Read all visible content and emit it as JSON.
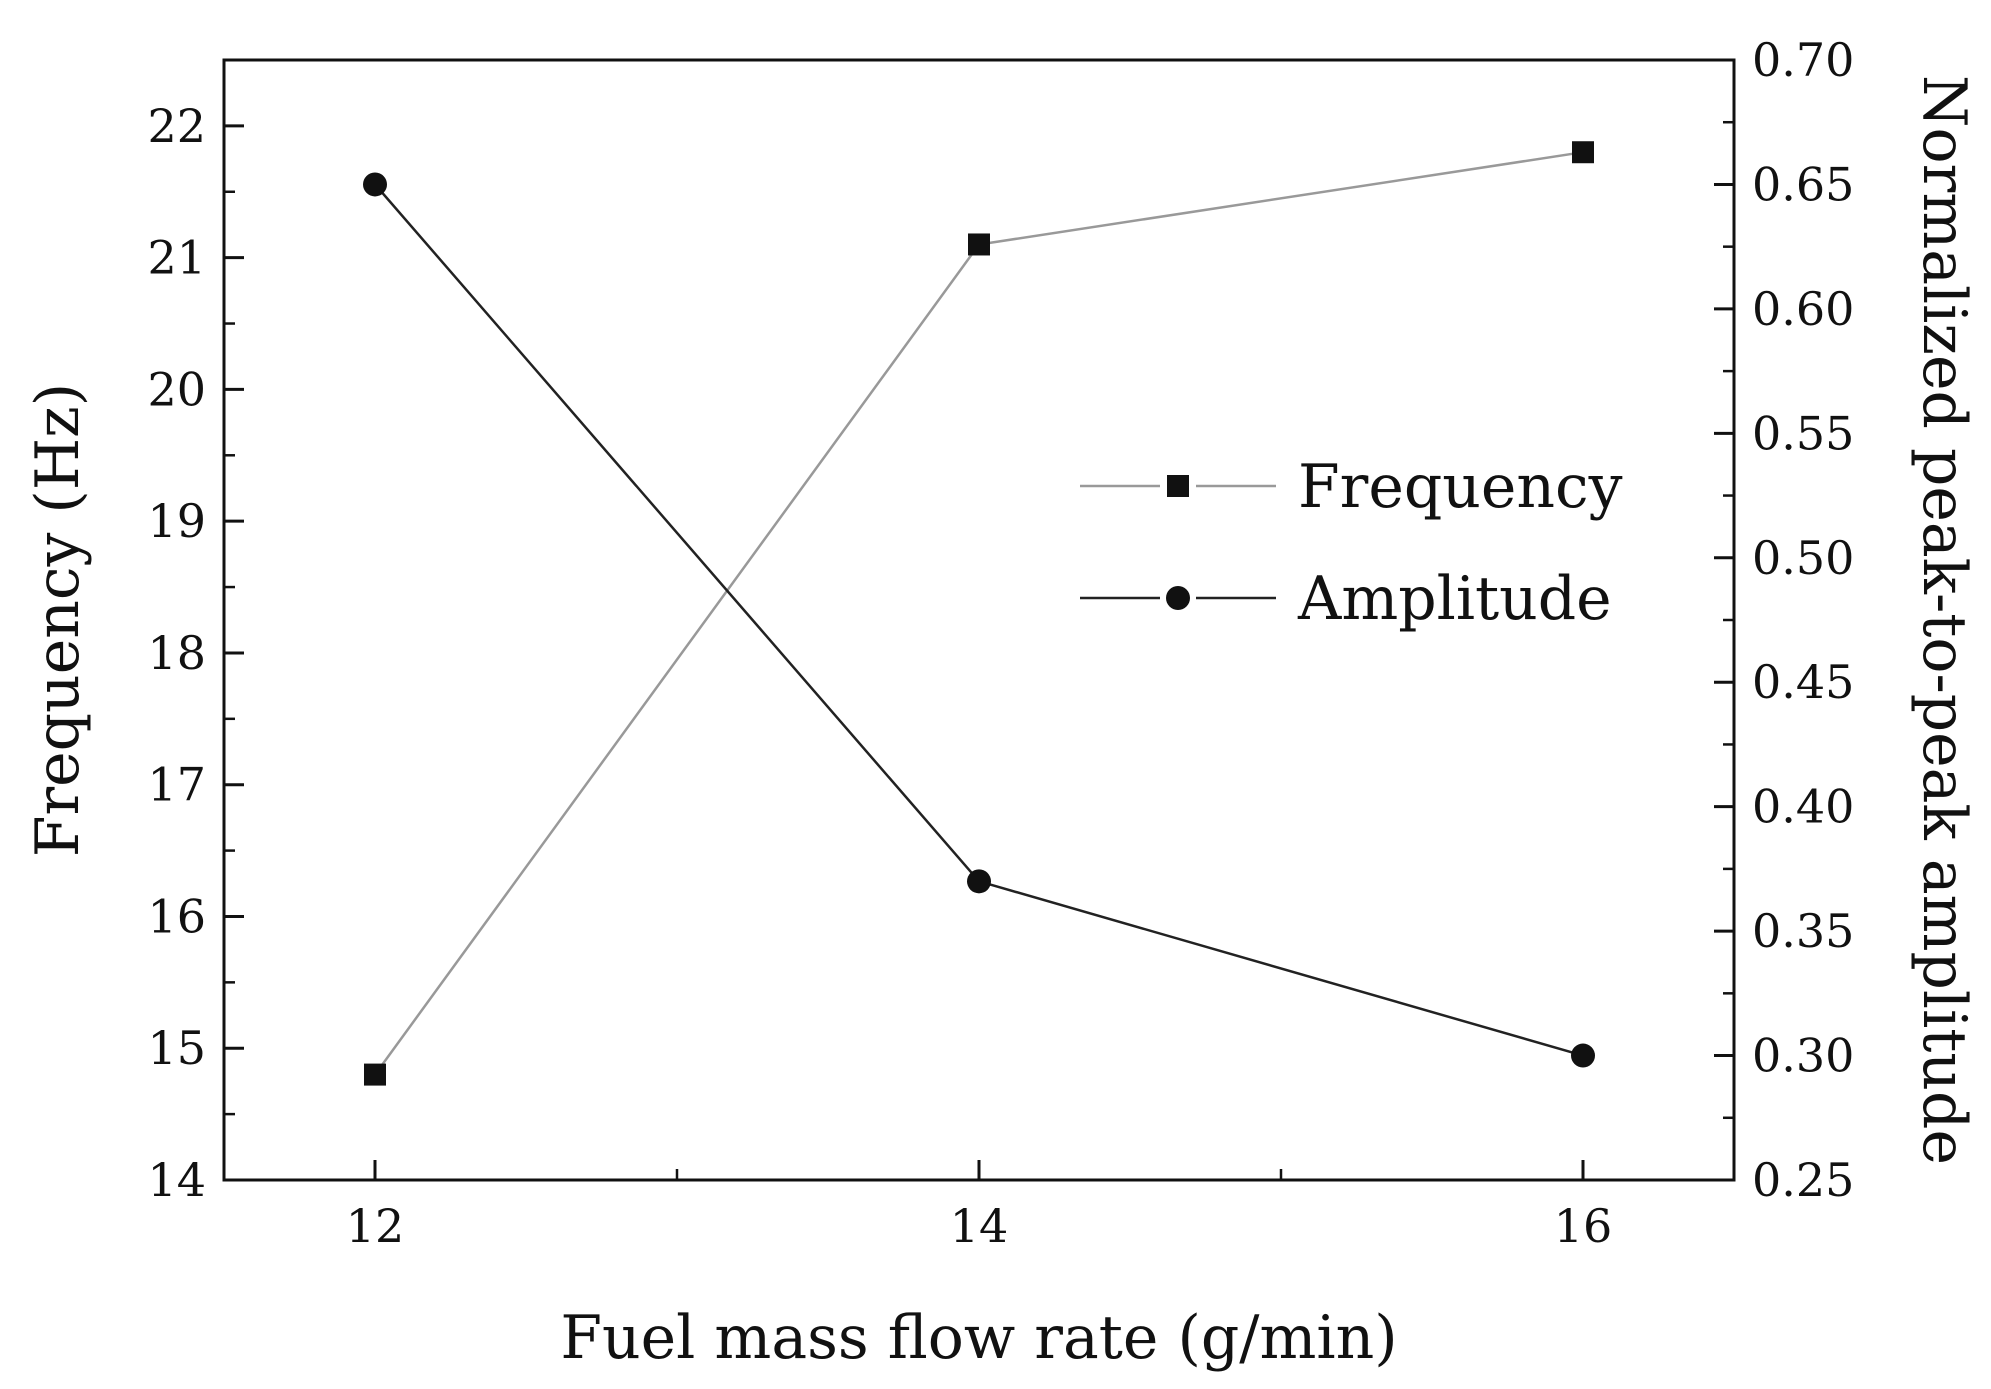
{
  "chart_data": {
    "type": "line",
    "title": "",
    "xlabel": "Fuel mass flow rate (g/min)",
    "ylabel_left": "Frequency (Hz)",
    "ylabel_right": "Normalized peak-to-peak amplitude",
    "x": [
      12,
      14,
      16
    ],
    "x_ticks": [
      "12",
      "14",
      "16"
    ],
    "xlim": [
      11.5,
      16.5
    ],
    "ylim_left": [
      14,
      22.5
    ],
    "ylim_right": [
      0.25,
      0.7
    ],
    "y_ticks_left": [
      "14",
      "15",
      "16",
      "17",
      "18",
      "19",
      "20",
      "21",
      "22"
    ],
    "y_ticks_right": [
      "0.25",
      "0.30",
      "0.35",
      "0.40",
      "0.45",
      "0.50",
      "0.55",
      "0.60",
      "0.65",
      "0.70"
    ],
    "grid": false,
    "legend_position": "center-right",
    "series": [
      {
        "name": "Frequency",
        "axis": "left",
        "marker": "square",
        "color": "#999999",
        "values": [
          14.8,
          21.1,
          21.8
        ]
      },
      {
        "name": "Amplitude",
        "axis": "right",
        "marker": "circle",
        "color": "#222222",
        "values": [
          0.65,
          0.37,
          0.3
        ]
      }
    ]
  }
}
